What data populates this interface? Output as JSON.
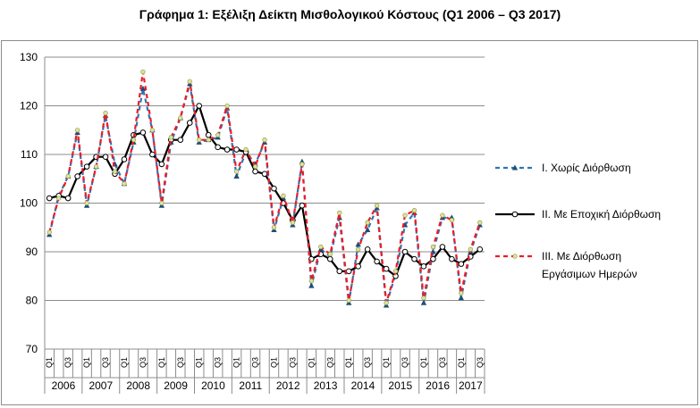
{
  "chart_data": {
    "type": "line",
    "title": "Γράφημα 1: Εξέλιξη Δείκτη Μισθολογικού Κόστους (Q1 2006 – Q3 2017)",
    "ylim": [
      70,
      130
    ],
    "yticks": [
      70,
      80,
      90,
      100,
      110,
      120,
      130
    ],
    "grid": true,
    "legend_position": "right",
    "quarter_labels": [
      "Q1",
      "Q3"
    ],
    "years": [
      "2006",
      "2007",
      "2008",
      "2009",
      "2010",
      "2011",
      "2012",
      "2013",
      "2014",
      "2015",
      "2016",
      "2017"
    ],
    "x": [
      "2006 Q1",
      "2006 Q2",
      "2006 Q3",
      "2006 Q4",
      "2007 Q1",
      "2007 Q2",
      "2007 Q3",
      "2007 Q4",
      "2008 Q1",
      "2008 Q2",
      "2008 Q3",
      "2008 Q4",
      "2009 Q1",
      "2009 Q2",
      "2009 Q3",
      "2009 Q4",
      "2010 Q1",
      "2010 Q2",
      "2010 Q3",
      "2010 Q4",
      "2011 Q1",
      "2011 Q2",
      "2011 Q3",
      "2011 Q4",
      "2012 Q1",
      "2012 Q2",
      "2012 Q3",
      "2012 Q4",
      "2013 Q1",
      "2013 Q2",
      "2013 Q3",
      "2013 Q4",
      "2014 Q1",
      "2014 Q2",
      "2014 Q3",
      "2014 Q4",
      "2015 Q1",
      "2015 Q2",
      "2015 Q3",
      "2015 Q4",
      "2016 Q1",
      "2016 Q2",
      "2016 Q3",
      "2016 Q4",
      "2017 Q1",
      "2017 Q2",
      "2017 Q3"
    ],
    "series": [
      {
        "name": "I. Χωρίς Διόρθωση",
        "color": "#2e75b6",
        "values": [
          93.5,
          101.5,
          105.5,
          114.5,
          99.5,
          107.5,
          118,
          108,
          104,
          112.5,
          123.5,
          115,
          99.5,
          112.5,
          117.5,
          124.5,
          112.5,
          113,
          113.5,
          119.5,
          105.5,
          110.5,
          108,
          112.5,
          94.5,
          101,
          95.5,
          108.5,
          83,
          90.5,
          89,
          97,
          79.5,
          91.5,
          94.5,
          99,
          79,
          85.5,
          95.5,
          98,
          79.5,
          90,
          97,
          97,
          80.5,
          90,
          95.5
        ]
      },
      {
        "name": "II. Με Εποχική Διόρθωση",
        "color": "#000000",
        "values": [
          101,
          101.5,
          101,
          105.5,
          107.5,
          109.5,
          109.5,
          106,
          109,
          114,
          114.5,
          110,
          108,
          113,
          113,
          116.5,
          120,
          114,
          111.5,
          111,
          111,
          110.5,
          106.5,
          106,
          103,
          100,
          96.5,
          99.5,
          88.5,
          89.5,
          88.5,
          86,
          86,
          87,
          90.5,
          88,
          86.5,
          85,
          90,
          88.5,
          87,
          88.5,
          91,
          88.5,
          87.5,
          89,
          90.5
        ]
      },
      {
        "name": "III. Με Διόρθωση Εργάσιμων Ημερών",
        "color": "#ee1c25",
        "values": [
          94,
          101,
          105.5,
          115,
          100,
          107.5,
          118.5,
          106.5,
          104,
          113,
          127,
          115,
          100,
          113.5,
          117.5,
          125,
          113,
          113,
          114,
          120,
          106.5,
          111,
          107.5,
          113,
          95,
          101.5,
          96,
          108,
          84,
          91,
          89.5,
          98,
          80,
          90.5,
          96,
          99.5,
          79.5,
          86,
          97.5,
          98.5,
          80.5,
          91,
          97.5,
          96.5,
          81.5,
          90.5,
          96
        ]
      }
    ]
  }
}
